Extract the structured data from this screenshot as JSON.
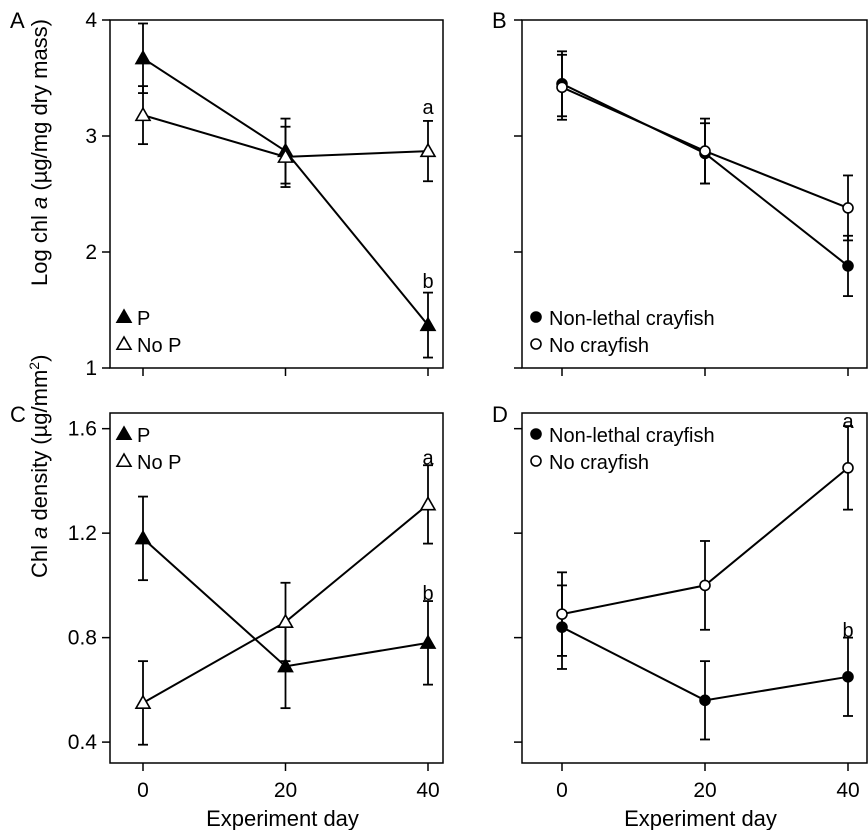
{
  "chart_data": [
    {
      "panel": "A",
      "type": "line",
      "x": [
        0,
        20,
        40
      ],
      "ylabel": "Log chl a (µg/mg dry mass)",
      "ylabel_pre": "Log chl ",
      "ylabel_italic": "a",
      "ylabel_post": " (µg/mg dry mass)",
      "ylim": [
        1,
        4
      ],
      "yticks": [
        1,
        2,
        3,
        4
      ],
      "ytick_labels": [
        "1",
        "2",
        "3",
        "4"
      ],
      "series": [
        {
          "name": "P",
          "marker": "triangle-filled",
          "values": [
            3.67,
            2.87,
            1.37
          ],
          "errors": [
            0.3,
            0.28,
            0.28
          ]
        },
        {
          "name": "No P",
          "marker": "triangle-open",
          "values": [
            3.18,
            2.82,
            2.87
          ],
          "errors": [
            0.25,
            0.26,
            0.26
          ]
        }
      ],
      "annotations": [
        {
          "x": 40,
          "y": 3.25,
          "text": "a"
        },
        {
          "x": 40,
          "y": 1.75,
          "text": "b"
        }
      ],
      "legend_position": "bottom-left"
    },
    {
      "panel": "B",
      "type": "line",
      "x": [
        0,
        20,
        40
      ],
      "ylim": [
        1,
        4
      ],
      "yticks": [
        1,
        2,
        3,
        4
      ],
      "series": [
        {
          "name": "Non-lethal crayfish",
          "marker": "circle-filled",
          "values": [
            3.45,
            2.85,
            1.88
          ],
          "errors": [
            0.28,
            0.26,
            0.26
          ]
        },
        {
          "name": "No crayfish",
          "marker": "circle-open",
          "values": [
            3.42,
            2.87,
            2.38
          ],
          "errors": [
            0.28,
            0.28,
            0.28
          ]
        }
      ],
      "legend_position": "bottom-left"
    },
    {
      "panel": "C",
      "type": "line",
      "x": [
        0,
        20,
        40
      ],
      "xlabel": "Experiment day",
      "xtick_labels": [
        "0",
        "20",
        "40"
      ],
      "ylabel": "Chl a density (µg/mm2)",
      "ylabel_pre": "Chl ",
      "ylabel_italic": "a",
      "ylabel_post": " density (µg/mm",
      "ylabel_sup": "2",
      "ylabel_end": ")",
      "ylim": [
        0.32,
        1.66
      ],
      "yticks": [
        0.4,
        0.8,
        1.2,
        1.6
      ],
      "ytick_labels": [
        "0.4",
        "0.8",
        "1.2",
        "1.6"
      ],
      "series": [
        {
          "name": "P",
          "marker": "triangle-filled",
          "values": [
            1.18,
            0.69,
            0.78
          ],
          "errors": [
            0.16,
            0.16,
            0.16
          ]
        },
        {
          "name": "No P",
          "marker": "triangle-open",
          "values": [
            0.55,
            0.86,
            1.31
          ],
          "errors": [
            0.16,
            0.15,
            0.15
          ]
        }
      ],
      "annotations": [
        {
          "x": 40,
          "y": 1.49,
          "text": "a"
        },
        {
          "x": 40,
          "y": 0.97,
          "text": "b"
        }
      ],
      "legend_position": "top-left"
    },
    {
      "panel": "D",
      "type": "line",
      "x": [
        0,
        20,
        40
      ],
      "xlabel": "Experiment day",
      "xtick_labels": [
        "0",
        "20",
        "40"
      ],
      "ylim": [
        0.32,
        1.66
      ],
      "yticks": [
        0.4,
        0.8,
        1.2,
        1.6
      ],
      "series": [
        {
          "name": "Non-lethal crayfish",
          "marker": "circle-filled",
          "values": [
            0.84,
            0.56,
            0.65
          ],
          "errors": [
            0.16,
            0.15,
            0.15
          ]
        },
        {
          "name": "No crayfish",
          "marker": "circle-open",
          "values": [
            0.89,
            1.0,
            1.45
          ],
          "errors": [
            0.16,
            0.17,
            0.16
          ]
        }
      ],
      "annotations": [
        {
          "x": 40,
          "y": 1.63,
          "text": "a"
        },
        {
          "x": 40,
          "y": 0.83,
          "text": "b"
        }
      ],
      "legend_position": "top-left"
    }
  ]
}
